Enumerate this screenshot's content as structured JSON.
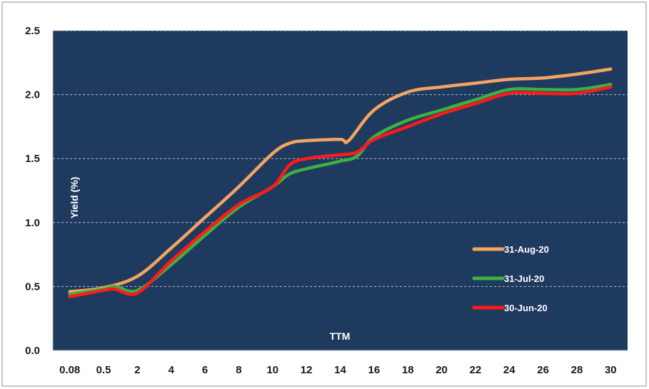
{
  "chart_data": {
    "type": "line",
    "xlabel": "TTM",
    "ylabel": "Yield (%)",
    "ylim": [
      0,
      2.5
    ],
    "yticks": [
      "0.0",
      "0.5",
      "1.0",
      "1.5",
      "2.0",
      "2.5"
    ],
    "x_tick_labels": [
      "0.08",
      "0.5",
      "2",
      "4",
      "6",
      "8",
      "10",
      "12",
      "14",
      "16",
      "18",
      "20",
      "22",
      "24",
      "26",
      "28",
      "30"
    ],
    "grid": true,
    "legend_position": "right",
    "series": [
      {
        "name": "31-Aug-20",
        "color": "#f4a460",
        "points": [
          [
            "0.08",
            0.46
          ],
          [
            "0.5",
            0.49
          ],
          [
            "2",
            0.58
          ],
          [
            "4",
            0.8
          ],
          [
            "6",
            1.04
          ],
          [
            "8",
            1.28
          ],
          [
            "10",
            1.54
          ],
          [
            "11",
            1.62
          ],
          [
            "12",
            1.64
          ],
          [
            "14",
            1.65
          ],
          [
            "14.5",
            1.64
          ],
          [
            "16",
            1.88
          ],
          [
            "18",
            2.02
          ],
          [
            "20",
            2.06
          ],
          [
            "22",
            2.09
          ],
          [
            "24",
            2.12
          ],
          [
            "26",
            2.13
          ],
          [
            "28",
            2.16
          ],
          [
            "30",
            2.2
          ]
        ]
      },
      {
        "name": "31-Jul-20",
        "color": "#3cb043",
        "points": [
          [
            "0.08",
            0.44
          ],
          [
            "0.5",
            0.48
          ],
          [
            "1",
            0.5
          ],
          [
            "2",
            0.47
          ],
          [
            "4",
            0.67
          ],
          [
            "6",
            0.9
          ],
          [
            "8",
            1.12
          ],
          [
            "10",
            1.28
          ],
          [
            "11",
            1.38
          ],
          [
            "12",
            1.42
          ],
          [
            "14",
            1.48
          ],
          [
            "15",
            1.52
          ],
          [
            "16",
            1.67
          ],
          [
            "18",
            1.8
          ],
          [
            "20",
            1.88
          ],
          [
            "22",
            1.96
          ],
          [
            "24",
            2.04
          ],
          [
            "26",
            2.04
          ],
          [
            "28",
            2.04
          ],
          [
            "30",
            2.08
          ]
        ]
      },
      {
        "name": "30-Jun-20",
        "color": "#ff1a1a",
        "points": [
          [
            "0.08",
            0.42
          ],
          [
            "0.5",
            0.47
          ],
          [
            "1",
            0.48
          ],
          [
            "2",
            0.45
          ],
          [
            "4",
            0.7
          ],
          [
            "6",
            0.93
          ],
          [
            "8",
            1.14
          ],
          [
            "10",
            1.28
          ],
          [
            "11",
            1.45
          ],
          [
            "12",
            1.5
          ],
          [
            "14",
            1.53
          ],
          [
            "15",
            1.55
          ],
          [
            "16",
            1.65
          ],
          [
            "18",
            1.75
          ],
          [
            "20",
            1.85
          ],
          [
            "22",
            1.93
          ],
          [
            "24",
            2.01
          ],
          [
            "26",
            2.01
          ],
          [
            "28",
            2.01
          ],
          [
            "30",
            2.06
          ]
        ]
      }
    ]
  }
}
